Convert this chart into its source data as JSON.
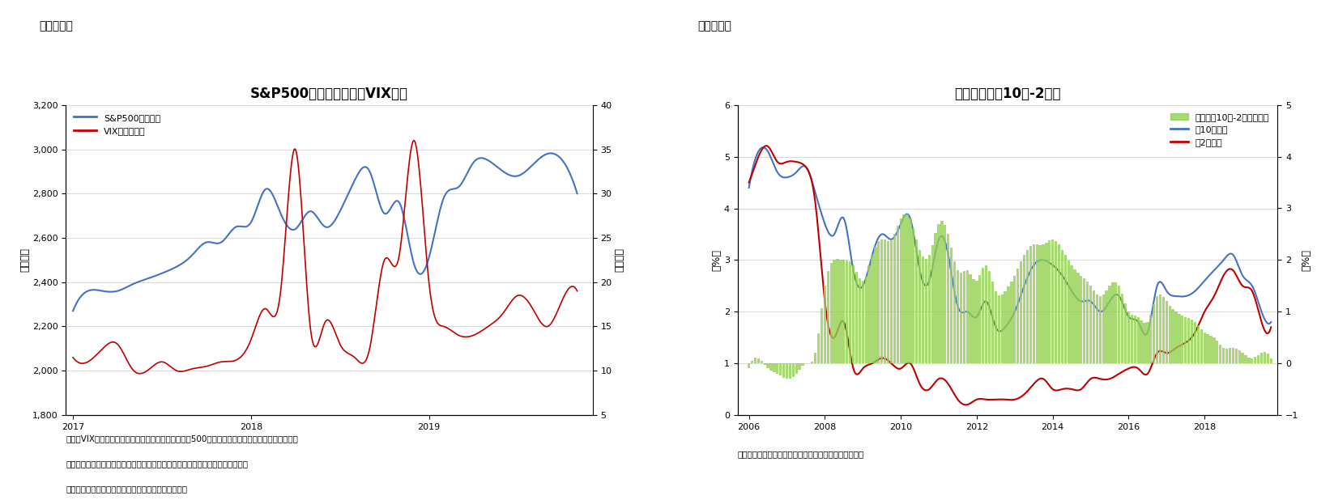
{
  "chart4": {
    "title": "S&P500株価指数およびVIX指数",
    "label_left": "（指数）",
    "label_right": "（指数）",
    "fig_label": "（図表４）",
    "ylim_left": [
      1800,
      3200
    ],
    "ylim_right": [
      5,
      40
    ],
    "yticks_left": [
      1800,
      2000,
      2200,
      2400,
      2600,
      2800,
      3000,
      3200
    ],
    "yticks_right": [
      5,
      10,
      15,
      20,
      25,
      30,
      35,
      40
    ],
    "sp500_color": "#4472C4",
    "vix_color": "#C00000",
    "note1": "（注）VIX指数はシカゴ・オプション取引所がＳ＆Ｐ500株価指数を対象とするオプション取引の",
    "note2": "　　ボラティリティを元に算出。投資家の先行き不透明感を示すとされている。",
    "note3": "（資料）ブルームバーグよりニッセイ基礎研究所作成",
    "legend_sp500": "S&P500株価指数",
    "legend_vix": "VIX数（右軸）"
  },
  "chart5": {
    "title": "長短金利差（10年-2年）",
    "label_left": "（%）",
    "label_right": "（%）",
    "fig_label": "（図表５）",
    "ylim_left": [
      0,
      6
    ],
    "ylim_right": [
      -1,
      5
    ],
    "yticks_left": [
      0,
      1,
      2,
      3,
      4,
      5,
      6
    ],
    "yticks_right": [
      -1,
      0,
      1,
      2,
      3,
      4,
      5
    ],
    "bar_color": "#92D050",
    "us10y_color": "#4472C4",
    "us2y_color": "#C00000",
    "note1": "（資料）データストリームよりニッセイ基礎研究所作成",
    "legend_spread": "金利差（10年-2年、右軸）",
    "legend_10y": "米10年金利",
    "legend_2y": "米2年金利"
  },
  "background_color": "#FFFFFF"
}
